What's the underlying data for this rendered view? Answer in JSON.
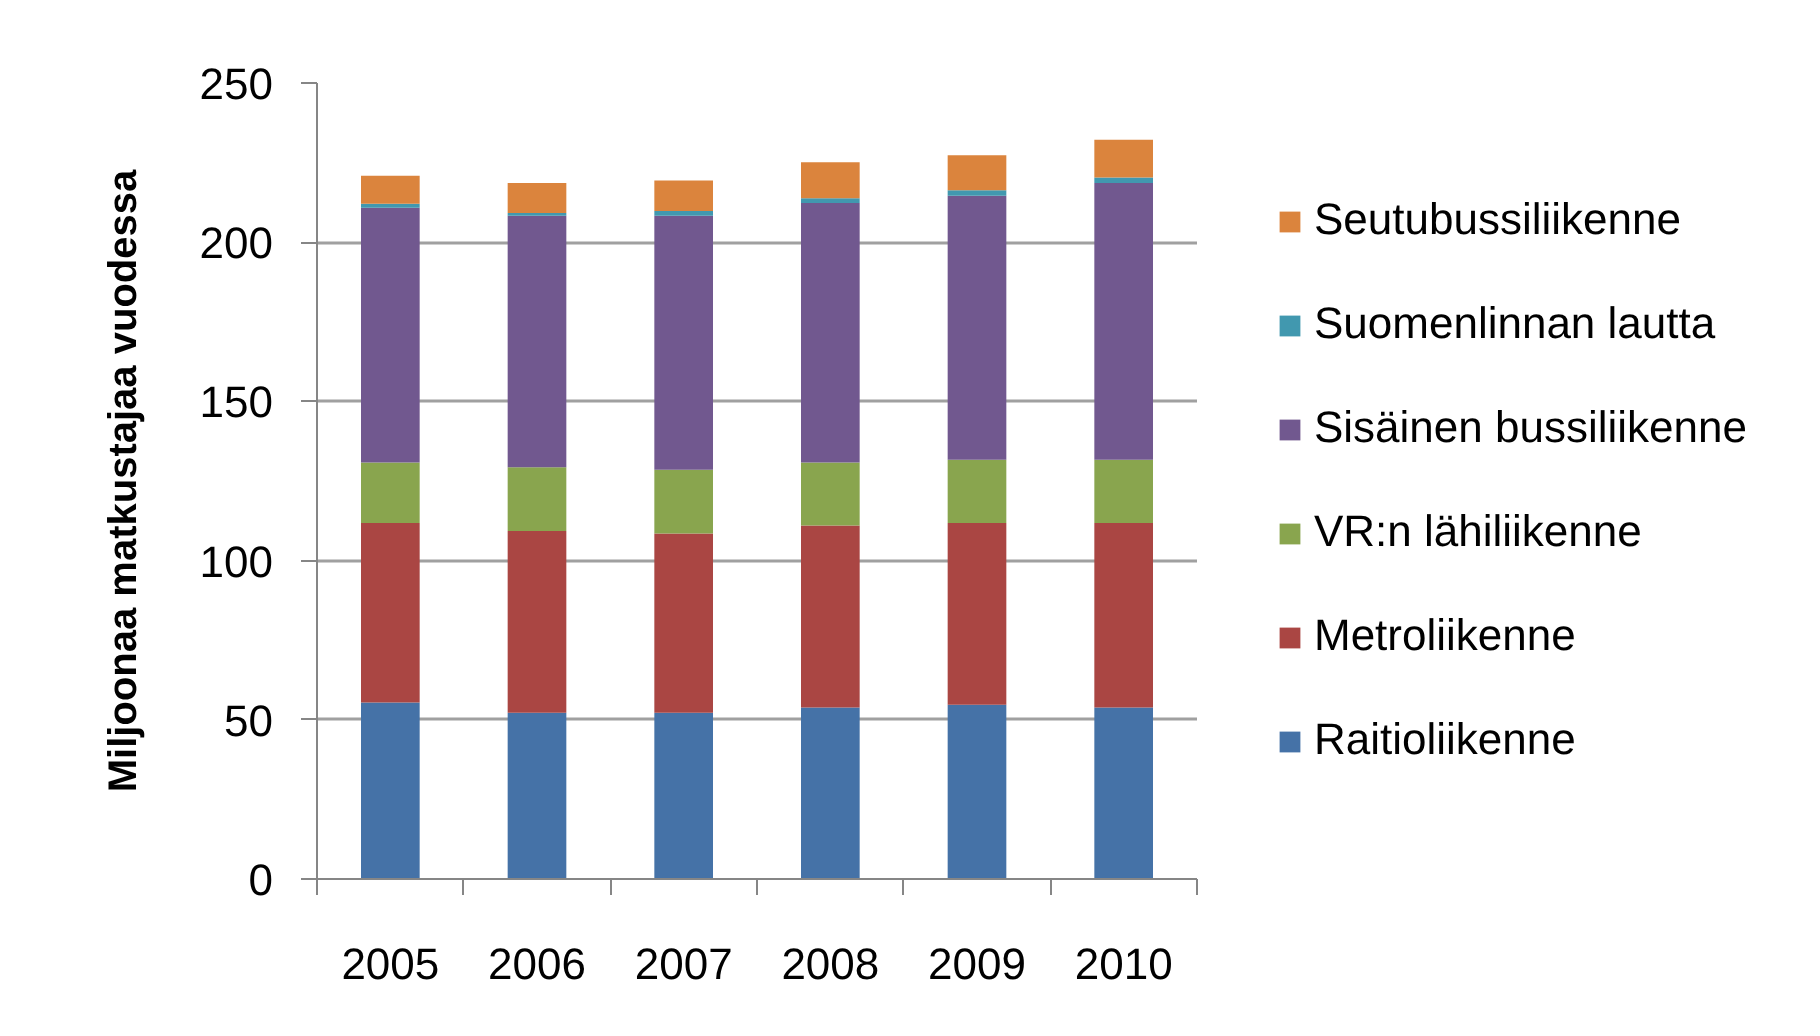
{
  "chart_data": {
    "type": "bar",
    "stacked": true,
    "ylabel": "Miljoonaa matkustajaa vuodessa",
    "categories": [
      "2005",
      "2006",
      "2007",
      "2008",
      "2009",
      "2010"
    ],
    "series": [
      {
        "name": "Raitioliikenne",
        "color": "#4572a7",
        "values": [
          55.4,
          52.2,
          52.2,
          53.9,
          54.7,
          53.9
        ]
      },
      {
        "name": "Metroliikenne",
        "color": "#aa4643",
        "values": [
          56.4,
          57.1,
          56.3,
          57.1,
          57.1,
          57.9
        ]
      },
      {
        "name": "VR:n lähiliikenne",
        "color": "#89a54e",
        "values": [
          19.0,
          20.0,
          20.0,
          19.8,
          19.9,
          19.9
        ]
      },
      {
        "name": "Sisäinen bussiliikenne",
        "color": "#71588f",
        "values": [
          80.0,
          79.0,
          79.8,
          81.5,
          82.9,
          86.9
        ]
      },
      {
        "name": "Suomenlinnan lautta",
        "color": "#4198af",
        "values": [
          1.3,
          0.9,
          1.5,
          1.5,
          1.7,
          1.7
        ]
      },
      {
        "name": "Seutubussiliikenne",
        "color": "#db843d",
        "values": [
          8.8,
          9.4,
          9.6,
          11.3,
          11.0,
          11.9
        ]
      }
    ],
    "ylim": [
      0,
      250
    ],
    "yticks": [
      0,
      50,
      100,
      150,
      200,
      250
    ],
    "grid": "y",
    "legend": "right"
  }
}
